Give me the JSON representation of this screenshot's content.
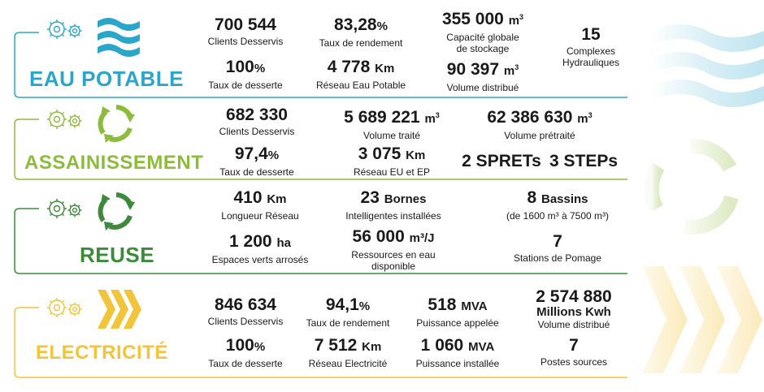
{
  "colors": {
    "eau": "#2ba6cb",
    "assainissement": "#8dbb3a",
    "reuse": "#3c8a3a",
    "electricite": "#f2c43a"
  },
  "sections": {
    "eau": {
      "title": "EAU POTABLE",
      "icon": "waves-icon",
      "stats": [
        {
          "value": "700 544",
          "unit": "",
          "sup": "",
          "label": "Clients Desservis"
        },
        {
          "value": "83,28",
          "unit": "%",
          "sup": "",
          "label": "Taux de rendement"
        },
        {
          "value": "355 000",
          "unit": "m",
          "sup": "3",
          "label": "Capacité globale",
          "label2": "de stockage"
        },
        {
          "value": "15",
          "unit": "",
          "sup": "",
          "label": "Complexes",
          "label2": "Hydrauliques"
        },
        {
          "value": "100",
          "unit": "%",
          "sup": "",
          "label": "Taux de desserte"
        },
        {
          "value": "4 778",
          "unit": "Km",
          "sup": "",
          "label": "Réseau Eau Potable"
        },
        {
          "value": "90 397",
          "unit": "m",
          "sup": "3",
          "label": "Volume distribué"
        }
      ]
    },
    "assainissement": {
      "title": "ASSAINISSEMENT",
      "icon": "recycle-icon",
      "stats": [
        {
          "value": "682 330",
          "unit": "",
          "sup": "",
          "label": "Clients Desservis"
        },
        {
          "value": "5 689 221",
          "unit": "m",
          "sup": "3",
          "label": "Volume traité"
        },
        {
          "value": "62 386 630",
          "unit": "m",
          "sup": "3",
          "label": "Volume prétraité"
        },
        {
          "value": "97,4",
          "unit": "%",
          "sup": "",
          "label": "Taux de desserte"
        },
        {
          "value": "3 075",
          "unit": "Km",
          "sup": "",
          "label": "Réseau EU et EP"
        },
        {
          "value": "2 SPRETs",
          "unit": "",
          "sup": "",
          "label": ""
        },
        {
          "value": "3 STEPs",
          "unit": "",
          "sup": "",
          "label": ""
        }
      ]
    },
    "reuse": {
      "title": "REUSE",
      "icon": "recycle-icon",
      "stats": [
        {
          "value": "410",
          "unit": "Km",
          "sup": "",
          "label": "Longueur Réseau"
        },
        {
          "value": "23",
          "unit": "Bornes",
          "sup": "",
          "label": "Intelligentes installées"
        },
        {
          "value": "8",
          "unit": "Bassins",
          "sup": "",
          "label": "(de 1600 m³ à 7500 m³)"
        },
        {
          "value": "1 200",
          "unit": "ha",
          "sup": "",
          "label": "Espaces verts arrosés"
        },
        {
          "value": "56 000",
          "unit": "m³/J",
          "sup": "",
          "label": "Ressources en eau",
          "label2": "disponible"
        },
        {
          "value": "7",
          "unit": "",
          "sup": "",
          "label": "Stations de Pomage"
        }
      ]
    },
    "electricite": {
      "title": "ELECTRICITÉ",
      "icon": "chevrons-icon",
      "stats": [
        {
          "value": "846 634",
          "unit": "",
          "sup": "",
          "label": "Clients Desservis"
        },
        {
          "value": "94,1",
          "unit": "%",
          "sup": "",
          "label": "Taux de rendement"
        },
        {
          "value": "518",
          "unit": "MVA",
          "sup": "",
          "label": "Puissance appelée"
        },
        {
          "value": "2 574 880",
          "unit": "",
          "sup": "",
          "label": "Millions Kwh",
          "label2": "Volume distribué"
        },
        {
          "value": "100",
          "unit": "%",
          "sup": "",
          "label": "Taux de desserte"
        },
        {
          "value": "7 512",
          "unit": "Km",
          "sup": "",
          "label": "Réseau Electricité"
        },
        {
          "value": "1 060",
          "unit": "MVA",
          "sup": "",
          "label": "Puissance installée"
        },
        {
          "value": "7",
          "unit": "",
          "sup": "",
          "label": "Postes sources"
        }
      ]
    }
  }
}
